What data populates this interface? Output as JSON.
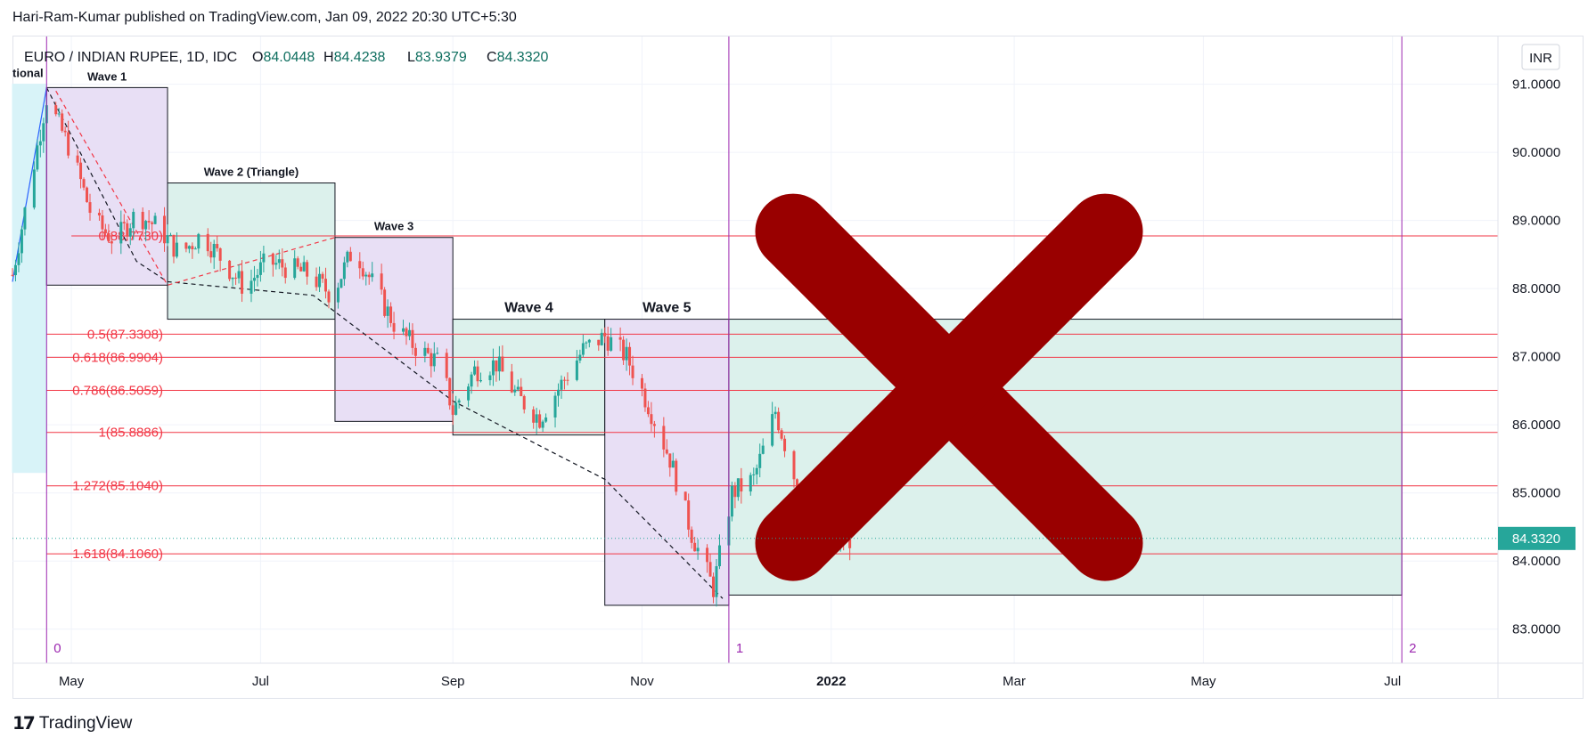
{
  "header": {
    "published": "Hari-Ram-Kumar published on TradingView.com, Jan 09, 2022 20:30 UTC+5:30"
  },
  "symbol": {
    "name": "EURO / INDIAN RUPEE, 1D, IDC",
    "open": "84.0448",
    "high": "84.4238",
    "low": "83.9379",
    "close": "84.3320",
    "open_label": "O",
    "high_label": "H",
    "low_label": "L",
    "close_label": "C"
  },
  "currency_badge": "INR",
  "last_price_label": "84.3320",
  "footer": {
    "brand": "TradingView"
  },
  "colors": {
    "up": "#26a69a",
    "down": "#ef5350",
    "purple": "#9c27b0",
    "fib": "#f23645",
    "cross": "#990000",
    "wave_box_purple": "#e8dff5",
    "wave_box_green": "#dcf1ec",
    "wave_box_cyan": "#d8f3f8"
  },
  "chart_data": {
    "type": "candlestick",
    "title": "EURO / INDIAN RUPEE, 1D, IDC",
    "ylim": [
      82.5,
      91.7
    ],
    "y_ticks": [
      "91.0000",
      "90.0000",
      "89.0000",
      "88.0000",
      "87.0000",
      "86.0000",
      "85.0000",
      "84.0000",
      "83.0000"
    ],
    "y_tick_values": [
      91,
      90,
      89,
      88,
      87,
      86,
      85,
      84,
      83
    ],
    "x_ticks": [
      "May",
      "Jul",
      "Sep",
      "Nov",
      "2022",
      "Mar",
      "May",
      "Jul"
    ],
    "x_tick_dates": [
      "2021-05-01",
      "2021-07-01",
      "2021-09-01",
      "2021-11-01",
      "2022-01-01",
      "2022-03-01",
      "2022-05-01",
      "2022-07-01"
    ],
    "xlim": [
      "2021-04-12",
      "2022-08-04"
    ],
    "grid": true,
    "waves": [
      {
        "label": "tional",
        "start": "2021-04-12",
        "end": "2021-04-23",
        "top": 91.0,
        "bottom": 85.3
      },
      {
        "label": "Wave 1",
        "start": "2021-04-23",
        "end": "2021-06-01",
        "top": 90.95,
        "bottom": 88.05
      },
      {
        "label": "Wave 2 (Triangle)",
        "start": "2021-06-01",
        "end": "2021-07-25",
        "top": 89.55,
        "bottom": 87.55
      },
      {
        "label": "Wave 3",
        "start": "2021-07-25",
        "end": "2021-09-01",
        "top": 88.75,
        "bottom": 86.05
      },
      {
        "label": "Wave 4",
        "start": "2021-09-01",
        "end": "2021-10-20",
        "top": 87.55,
        "bottom": 85.85
      },
      {
        "label": "Wave 5",
        "start": "2021-10-20",
        "end": "2021-11-29",
        "top": 87.55,
        "bottom": 83.35
      },
      {
        "label": "",
        "start": "2021-11-29",
        "end": "2022-07-04",
        "top": 87.55,
        "bottom": 83.5
      }
    ],
    "fib_levels": [
      {
        "label": "0(88.7730)",
        "value": 88.773
      },
      {
        "label": "0.5(87.3308)",
        "value": 87.3308
      },
      {
        "label": "0.618(86.9904)",
        "value": 86.9904
      },
      {
        "label": "0.786(86.5059)",
        "value": 86.5059
      },
      {
        "label": "1(85.8886)",
        "value": 85.8886
      },
      {
        "label": "1.272(85.1040)",
        "value": 85.104
      },
      {
        "label": "1.618(84.1060)",
        "value": 84.106
      }
    ],
    "time_cycle_lines": [
      {
        "label": "0",
        "date": "2021-04-23"
      },
      {
        "label": "1",
        "date": "2021-11-29"
      },
      {
        "label": "2",
        "date": "2022-07-04"
      }
    ],
    "path_points": [
      [
        "2021-04-23",
        90.95
      ],
      [
        "2021-05-22",
        88.4
      ],
      [
        "2021-06-01",
        88.1
      ],
      [
        "2021-07-18",
        87.9
      ],
      [
        "2021-09-01",
        86.35
      ],
      [
        "2021-10-20",
        85.2
      ],
      [
        "2021-11-27",
        83.45
      ]
    ],
    "triangle_points": [
      [
        "2021-04-26",
        90.9
      ],
      [
        "2021-06-01",
        88.05
      ],
      [
        "2021-07-25",
        88.75
      ]
    ],
    "impulse_points": [
      [
        "2021-04-12",
        88.1
      ],
      [
        "2021-04-23",
        90.95
      ]
    ],
    "candle_anchors": [
      [
        "2021-04-12",
        88.2
      ],
      [
        "2021-04-18",
        89.6
      ],
      [
        "2021-04-23",
        90.8
      ],
      [
        "2021-05-01",
        90.0
      ],
      [
        "2021-05-08",
        89.0
      ],
      [
        "2021-05-15",
        88.7
      ],
      [
        "2021-05-22",
        89.1
      ],
      [
        "2021-05-29",
        88.9
      ],
      [
        "2021-06-05",
        88.5
      ],
      [
        "2021-06-12",
        88.8
      ],
      [
        "2021-06-19",
        88.4
      ],
      [
        "2021-06-26",
        88.0
      ],
      [
        "2021-07-03",
        88.4
      ],
      [
        "2021-07-10",
        88.3
      ],
      [
        "2021-07-17",
        88.2
      ],
      [
        "2021-07-24",
        87.9
      ],
      [
        "2021-07-31",
        88.6
      ],
      [
        "2021-08-07",
        88.0
      ],
      [
        "2021-08-14",
        87.4
      ],
      [
        "2021-08-21",
        87.1
      ],
      [
        "2021-08-28",
        86.9
      ],
      [
        "2021-09-01",
        86.2
      ],
      [
        "2021-09-08",
        86.8
      ],
      [
        "2021-09-15",
        86.9
      ],
      [
        "2021-09-22",
        86.4
      ],
      [
        "2021-09-29",
        86.1
      ],
      [
        "2021-10-06",
        86.6
      ],
      [
        "2021-10-13",
        87.1
      ],
      [
        "2021-10-20",
        87.3
      ],
      [
        "2021-10-27",
        87.0
      ],
      [
        "2021-11-03",
        86.3
      ],
      [
        "2021-11-10",
        85.5
      ],
      [
        "2021-11-17",
        84.4
      ],
      [
        "2021-11-24",
        83.6
      ],
      [
        "2021-11-30",
        85.0
      ],
      [
        "2021-12-07",
        85.2
      ],
      [
        "2021-12-14",
        86.2
      ],
      [
        "2021-12-21",
        85.1
      ],
      [
        "2021-12-28",
        84.3
      ],
      [
        "2022-01-07",
        84.33
      ]
    ],
    "last_value": 84.332
  }
}
